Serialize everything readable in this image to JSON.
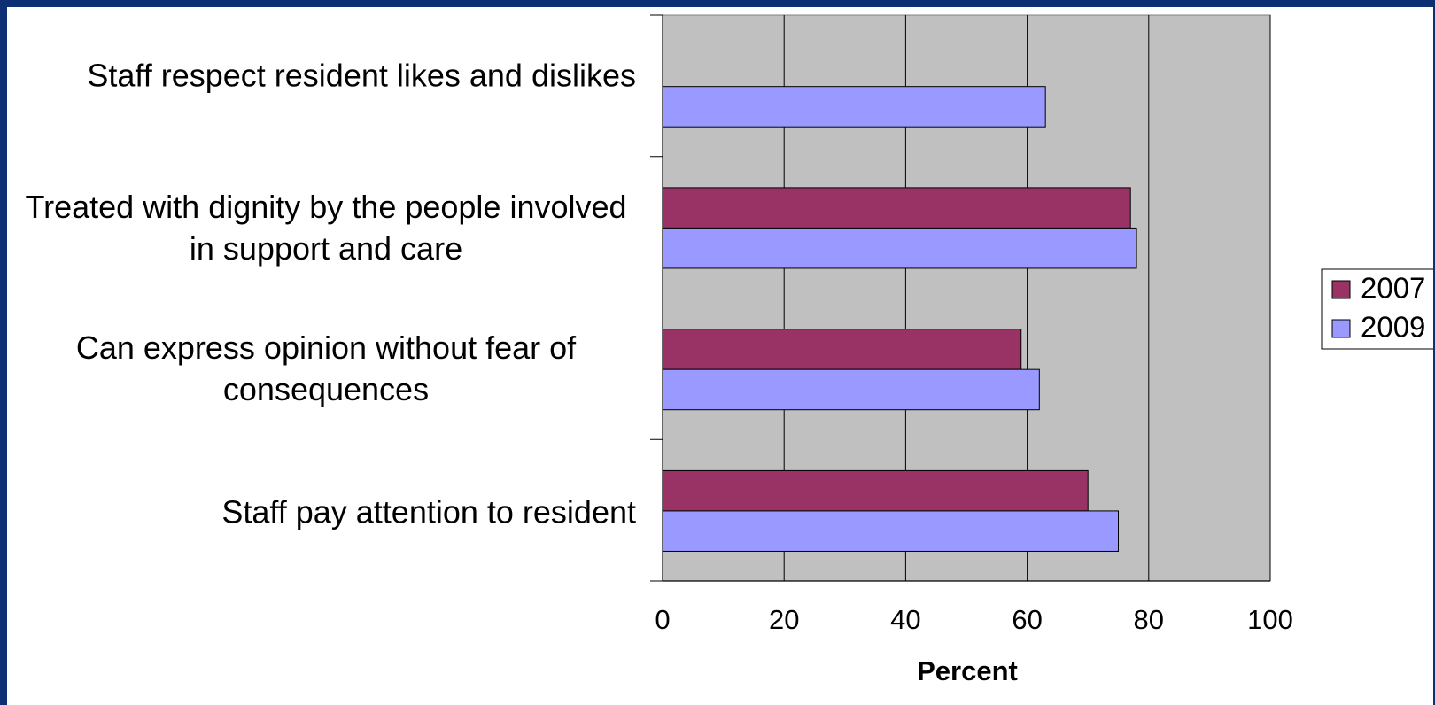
{
  "chart_data": {
    "type": "bar",
    "orientation": "horizontal",
    "categories": [
      "Staff respect resident likes and dislikes",
      "Treated with dignity by the people involved in support and care",
      "Can express opinion without fear of consequences",
      "Staff pay attention to resident"
    ],
    "series": [
      {
        "name": "2007",
        "color": "#993366",
        "values": [
          null,
          77,
          59,
          70
        ]
      },
      {
        "name": "2009",
        "color": "#9999ff",
        "values": [
          63,
          78,
          62,
          75
        ]
      }
    ],
    "x_label": "Percent",
    "xlim": [
      0,
      100
    ],
    "xticks": [
      0,
      20,
      40,
      60,
      80,
      100
    ],
    "grid": true,
    "plot_background": "#c0c0c0",
    "legend": "right"
  }
}
